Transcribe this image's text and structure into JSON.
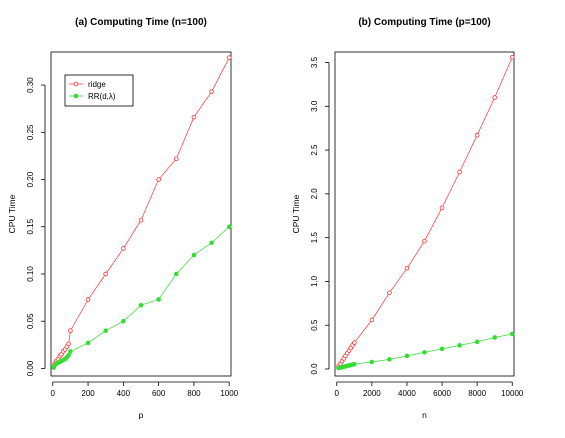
{
  "chart_data": [
    {
      "type": "line",
      "title": "(a) Computing Time (n=100)",
      "xlabel": "p",
      "ylabel": "CPU Time",
      "xlim": [
        -10,
        1010
      ],
      "ylim": [
        -0.008,
        0.335
      ],
      "xticks": [
        0,
        200,
        400,
        600,
        800,
        1000
      ],
      "yticks": [
        0.0,
        0.05,
        0.1,
        0.15,
        0.2,
        0.25,
        0.3
      ],
      "ytick_labels": [
        "0.00",
        "0.05",
        "0.10",
        "0.15",
        "0.20",
        "0.25",
        "0.30"
      ],
      "legend": {
        "position": "top-left",
        "entries": [
          "ridge",
          "RR(d,λ)"
        ]
      },
      "series": [
        {
          "name": "ridge",
          "color": "#ff3333",
          "marker": "open-circle",
          "x": [
            5,
            10,
            20,
            30,
            40,
            50,
            60,
            70,
            80,
            90,
            100,
            200,
            300,
            400,
            500,
            600,
            700,
            800,
            900,
            1000
          ],
          "y": [
            0.001,
            0.005,
            0.008,
            0.01,
            0.013,
            0.015,
            0.018,
            0.02,
            0.023,
            0.026,
            0.04,
            0.073,
            0.1,
            0.127,
            0.157,
            0.2,
            0.222,
            0.266,
            0.293,
            0.329
          ]
        },
        {
          "name": "RR(d,λ)",
          "color": "#33dd33",
          "marker": "filled-circle",
          "x": [
            5,
            10,
            20,
            30,
            40,
            50,
            60,
            70,
            80,
            90,
            100,
            200,
            300,
            400,
            500,
            600,
            700,
            800,
            900,
            1000
          ],
          "y": [
            0.001,
            0.003,
            0.005,
            0.006,
            0.007,
            0.008,
            0.009,
            0.01,
            0.012,
            0.014,
            0.018,
            0.027,
            0.04,
            0.05,
            0.067,
            0.073,
            0.1,
            0.12,
            0.133,
            0.15
          ]
        }
      ]
    },
    {
      "type": "line",
      "title": "(b) Computing Time (p=100)",
      "xlabel": "n",
      "ylabel": "CPU Time",
      "xlim": [
        -100,
        10100
      ],
      "ylim": [
        -0.08,
        3.62
      ],
      "xticks": [
        0,
        2000,
        4000,
        6000,
        8000,
        10000
      ],
      "yticks": [
        0.0,
        0.5,
        1.0,
        1.5,
        2.0,
        2.5,
        3.0,
        3.5
      ],
      "ytick_labels": [
        "0.0",
        "0.5",
        "1.0",
        "1.5",
        "2.0",
        "2.5",
        "3.0",
        "3.5"
      ],
      "series": [
        {
          "name": "ridge",
          "color": "#ff3333",
          "marker": "open-circle",
          "x": [
            100,
            200,
            300,
            400,
            500,
            600,
            700,
            800,
            900,
            1000,
            2000,
            3000,
            4000,
            5000,
            6000,
            7000,
            8000,
            9000,
            10000
          ],
          "y": [
            0.03,
            0.06,
            0.09,
            0.12,
            0.15,
            0.18,
            0.21,
            0.24,
            0.27,
            0.3,
            0.56,
            0.87,
            1.15,
            1.46,
            1.84,
            2.25,
            2.67,
            3.1,
            3.56
          ]
        },
        {
          "name": "RR(d,λ)",
          "color": "#33dd33",
          "marker": "filled-circle",
          "x": [
            100,
            200,
            300,
            400,
            500,
            600,
            700,
            800,
            900,
            1000,
            2000,
            3000,
            4000,
            5000,
            6000,
            7000,
            8000,
            9000,
            10000
          ],
          "y": [
            0.01,
            0.015,
            0.02,
            0.025,
            0.03,
            0.035,
            0.04,
            0.045,
            0.05,
            0.055,
            0.08,
            0.11,
            0.15,
            0.19,
            0.23,
            0.27,
            0.31,
            0.36,
            0.4
          ]
        }
      ]
    }
  ]
}
